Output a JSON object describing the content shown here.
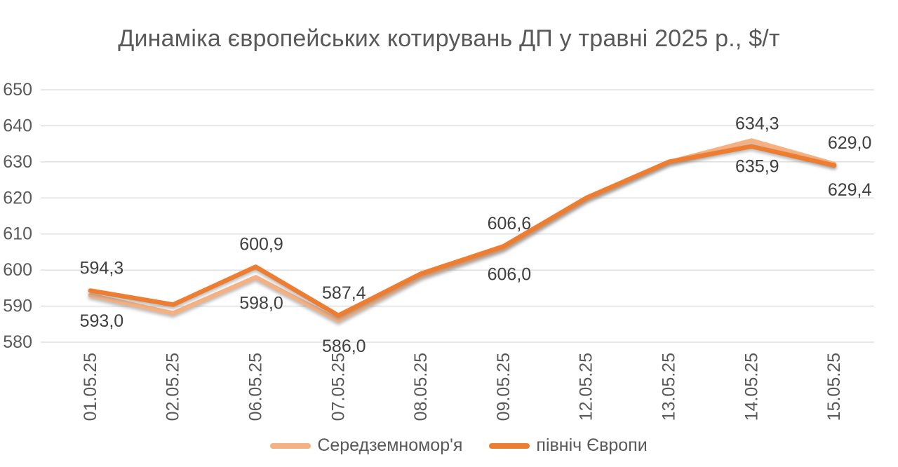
{
  "chart_data": {
    "type": "line",
    "title": "Динаміка європейських котирувань ДП у травні 2025 р., $/т",
    "categories": [
      "01.05.25",
      "02.05.25",
      "06.05.25",
      "07.05.25",
      "08.05.25",
      "09.05.25",
      "12.05.25",
      "13.05.25",
      "14.05.25",
      "15.05.25"
    ],
    "series": [
      {
        "name": "Середземномор'я",
        "color": "#F4B183",
        "label_position": "below",
        "values": [
          593.0,
          588.0,
          598.0,
          586.0,
          598.2,
          606.0,
          619.6,
          629.9,
          635.9,
          629.4
        ],
        "labels": {
          "0": "593,0",
          "2": "598,0",
          "3": "586,0",
          "5": "606,0",
          "8": "635,9",
          "9": "629,4"
        }
      },
      {
        "name": "північ Європи",
        "color": "#ED7D31",
        "label_position": "above",
        "values": [
          594.3,
          590.4,
          600.9,
          587.4,
          599.0,
          606.6,
          620.0,
          630.0,
          634.3,
          629.0
        ],
        "labels": {
          "0": "594,3",
          "2": "600,9",
          "3": "587,4",
          "5": "606,6",
          "8": "634,3",
          "9": "629,0"
        }
      }
    ],
    "ylim": [
      580,
      650
    ],
    "yticks": [
      580,
      590,
      600,
      610,
      620,
      630,
      640,
      650
    ],
    "grid": true,
    "legend_position": "bottom",
    "colors": {
      "grid": "#D9D9D9",
      "axis_text": "#595959",
      "data_label": "#3F3F3F",
      "title": "#595959"
    }
  }
}
